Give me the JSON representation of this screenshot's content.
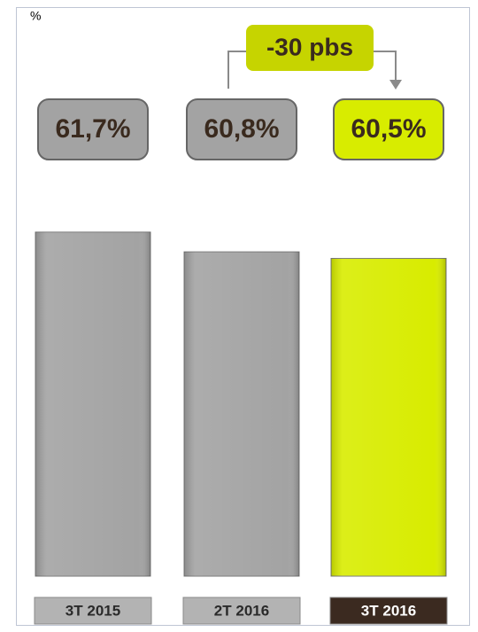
{
  "chart_data": {
    "type": "bar",
    "unit_label": "%",
    "annotation": "-30 pbs",
    "categories": [
      "3T 2015",
      "2T 2016",
      "3T 2016"
    ],
    "values": [
      61.7,
      60.8,
      60.5
    ],
    "value_labels": [
      "61,7%",
      "60,8%",
      "60,5%"
    ],
    "colors": [
      "#a3a3a3",
      "#a3a3a3",
      "#d8ec00"
    ],
    "ylim": [
      46,
      64
    ]
  }
}
